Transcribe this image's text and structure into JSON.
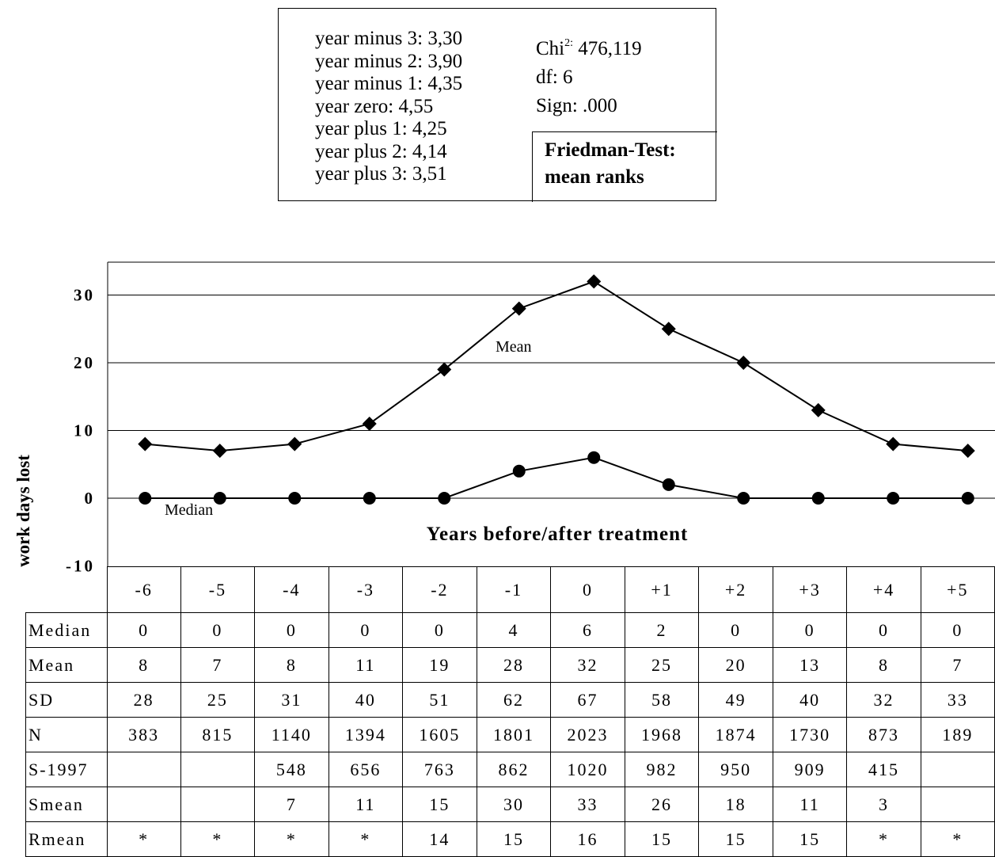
{
  "friedman": {
    "ranks": [
      "year minus 3: 3,30",
      "year minus 2: 3,90",
      "year minus 1: 4,35",
      "year zero: 4,55",
      "year plus 1: 4,25",
      "year plus 2: 4,14",
      "year plus 3: 3,51"
    ],
    "chi_label": "Chi",
    "chi_sup": "2:",
    "chi_value": "476,119",
    "df": "df: 6",
    "sign": "Sign: .000",
    "title_line1": "Friedman-Test:",
    "title_line2": "mean ranks"
  },
  "chart_data": {
    "type": "line",
    "ylabel": "work days lost",
    "xlabel": "Years before/after treatment",
    "yticks": [
      "30",
      "20",
      "10",
      "0",
      "-10"
    ],
    "ylim": [
      -10,
      35
    ],
    "grid": true,
    "categories": [
      "-6",
      "-5",
      "-4",
      "-3",
      "-2",
      "-1",
      "0",
      "+1",
      "+2",
      "+3",
      "+4",
      "+5"
    ],
    "series": [
      {
        "name": "Mean",
        "marker": "diamond",
        "values": [
          8,
          7,
          8,
          11,
          19,
          28,
          32,
          25,
          20,
          13,
          8,
          7
        ]
      },
      {
        "name": "Median",
        "marker": "circle",
        "values": [
          0,
          0,
          0,
          0,
          0,
          4,
          6,
          2,
          0,
          0,
          0,
          0
        ]
      }
    ]
  },
  "table": {
    "columns": [
      "-6",
      "-5",
      "-4",
      "-3",
      "-2",
      "-1",
      "0",
      "+1",
      "+2",
      "+3",
      "+4",
      "+5"
    ],
    "rows": [
      {
        "label": "Median",
        "cells": [
          "0",
          "0",
          "0",
          "0",
          "0",
          "4",
          "6",
          "2",
          "0",
          "0",
          "0",
          "0"
        ]
      },
      {
        "label": "Mean",
        "cells": [
          "8",
          "7",
          "8",
          "11",
          "19",
          "28",
          "32",
          "25",
          "20",
          "13",
          "8",
          "7"
        ]
      },
      {
        "label": "SD",
        "cells": [
          "28",
          "25",
          "31",
          "40",
          "51",
          "62",
          "67",
          "58",
          "49",
          "40",
          "32",
          "33"
        ]
      },
      {
        "label": "N",
        "cells": [
          "383",
          "815",
          "1140",
          "1394",
          "1605",
          "1801",
          "2023",
          "1968",
          "1874",
          "1730",
          "873",
          "189"
        ]
      },
      {
        "label": "S-1997",
        "cells": [
          "",
          "",
          "548",
          "656",
          "763",
          "862",
          "1020",
          "982",
          "950",
          "909",
          "415",
          ""
        ]
      },
      {
        "label": "Smean",
        "cells": [
          "",
          "",
          "7",
          "11",
          "15",
          "30",
          "33",
          "26",
          "18",
          "11",
          "3",
          ""
        ]
      },
      {
        "label": "Rmean",
        "cells": [
          "*",
          "*",
          "*",
          "*",
          "14",
          "15",
          "16",
          "15",
          "15",
          "15",
          "*",
          "*"
        ]
      }
    ]
  }
}
